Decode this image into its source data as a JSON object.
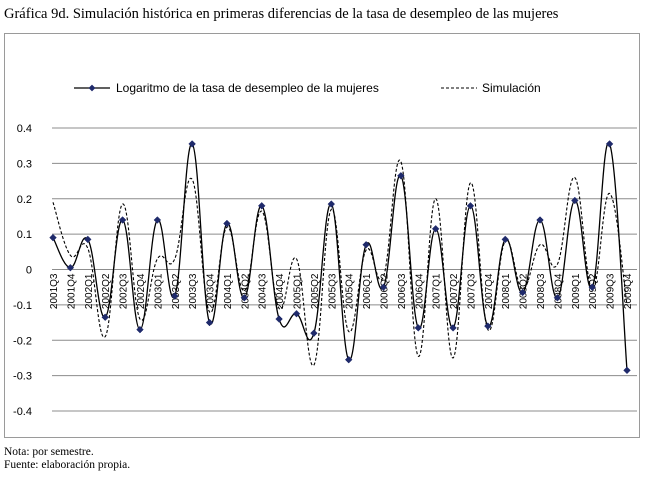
{
  "title": "Gráfica 9d. Simulación histórica en primeras diferencias de la tasa de desempleo de las mujeres",
  "notes": {
    "line1": "Nota: por semestre.",
    "line2": "Fuente: elaboración propia."
  },
  "chart_data": {
    "type": "line",
    "title": "",
    "xlabel": "",
    "ylabel": "",
    "ylim": [
      -0.4,
      0.4
    ],
    "yticks": [
      -0.4,
      -0.3,
      -0.2,
      -0.1,
      0,
      0.1,
      0.2,
      0.3,
      0.4
    ],
    "grid": true,
    "legend_position": "top",
    "x": [
      "2001Q3",
      "2001Q4",
      "2002Q1",
      "2002Q2",
      "2002Q3",
      "2002Q4",
      "2003Q1",
      "2003Q2",
      "2003Q3",
      "2003Q4",
      "2004Q1",
      "2004Q2",
      "2004Q3",
      "2004Q4",
      "2005Q1",
      "2005Q2",
      "2005Q3",
      "2005Q4",
      "2006Q1",
      "2006Q2",
      "2006Q3",
      "2006Q4",
      "2007Q1",
      "2007Q2",
      "2007Q3",
      "2007Q4",
      "2008Q1",
      "2008Q2",
      "2008Q3",
      "2008Q4",
      "2009Q1",
      "2009Q2",
      "2009Q3",
      "2009Q4"
    ],
    "x_tick_labels": [
      "2001Q3",
      "2001Q4",
      "2002Q1",
      "2002Q2",
      "2002Q3",
      "2002Q4",
      "2003Q1",
      "2003Q2",
      "2003Q3",
      "2003Q4",
      "2004Q1",
      "2004Q2",
      "2004Q3",
      "2004Q4",
      "2005Q1",
      "2005Q2",
      "2005Q3",
      "2005Q4",
      "2006Q1",
      "2006Q2",
      "2006Q3",
      "2006Q4",
      "2007Q1",
      "2007Q2",
      "2007Q3",
      "2007Q4",
      "2008Q1",
      "2008Q2",
      "2008Q3",
      "2008Q4",
      "2009Q1",
      "2009Q2",
      "2009Q3",
      "2009Q4"
    ],
    "series": [
      {
        "name": "Logaritmo de la tasa de desempleo de la mujeres",
        "color": "#000000",
        "style": "solid",
        "marker": "diamond",
        "marker_color": "#1f2a6b",
        "values": [
          0.09,
          0.005,
          0.085,
          -0.135,
          0.14,
          -0.17,
          0.14,
          -0.075,
          0.355,
          -0.15,
          0.13,
          -0.08,
          0.18,
          -0.14,
          -0.125,
          -0.18,
          0.185,
          -0.255,
          0.07,
          -0.05,
          0.265,
          -0.165,
          0.115,
          -0.165,
          0.18,
          -0.16,
          0.085,
          -0.065,
          0.14,
          -0.08,
          0.195,
          -0.05,
          0.355,
          -0.285
        ]
      },
      {
        "name": "Simulación",
        "color": "#000000",
        "style": "dashed",
        "marker": "none",
        "values": [
          0.19,
          0.04,
          0.06,
          -0.19,
          0.185,
          -0.14,
          0.03,
          0.03,
          0.255,
          -0.12,
          0.12,
          -0.06,
          0.165,
          -0.11,
          0.03,
          -0.27,
          0.17,
          -0.175,
          0.055,
          -0.02,
          0.305,
          -0.245,
          0.2,
          -0.25,
          0.245,
          -0.17,
          0.08,
          -0.055,
          0.07,
          0.015,
          0.26,
          -0.055,
          0.215,
          -0.1
        ]
      }
    ]
  }
}
